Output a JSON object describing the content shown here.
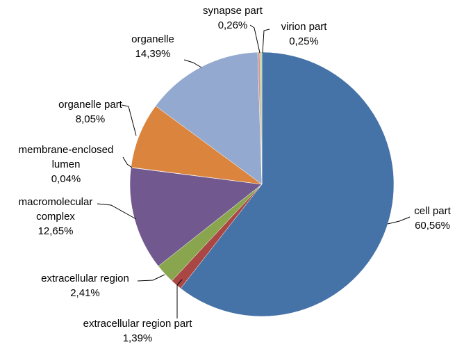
{
  "chart_data": {
    "type": "pie",
    "categories": [
      "cell part",
      "extracellular region part",
      "extracellular region",
      "macromolecular complex",
      "membrane-enclosed lumen",
      "organelle part",
      "organelle",
      "synapse part",
      "virion part"
    ],
    "values": [
      60.56,
      1.39,
      2.41,
      12.65,
      0.04,
      8.05,
      14.39,
      0.26,
      0.25
    ],
    "value_labels": [
      "60,56%",
      "1,39%",
      "2,41%",
      "12,65%",
      "0,04%",
      "8,05%",
      "14,39%",
      "0,26%",
      "0,25%"
    ],
    "colors": [
      "#4572a7",
      "#aa4643",
      "#89a54e",
      "#71588f",
      "#4198af",
      "#db843d",
      "#93a9cf",
      "#d19392",
      "#b9cd96"
    ]
  }
}
